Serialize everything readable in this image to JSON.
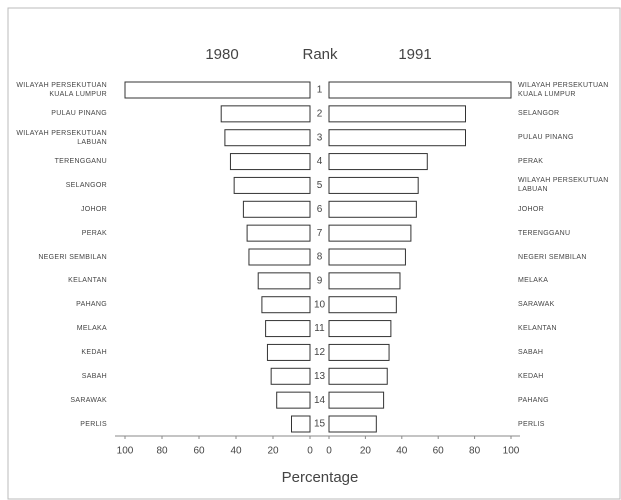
{
  "chart_data": {
    "type": "butterfly-bar",
    "headers": {
      "left": "1980",
      "middle": "Rank",
      "right": "1991"
    },
    "ranks": [
      1,
      2,
      3,
      4,
      5,
      6,
      7,
      8,
      9,
      10,
      11,
      12,
      13,
      14,
      15
    ],
    "series": [
      {
        "name": "1980",
        "color": "#ffffff",
        "categories": [
          "WILAYAH PERSEKUTUAN KUALA LUMPUR",
          "PULAU PINANG",
          "WILAYAH PERSEKUTUAN LABUAN",
          "TERENGGANU",
          "SELANGOR",
          "JOHOR",
          "PERAK",
          "NEGERI SEMBILAN",
          "KELANTAN",
          "PAHANG",
          "MELAKA",
          "KEDAH",
          "SABAH",
          "SARAWAK",
          "PERLIS"
        ],
        "values": [
          100,
          48,
          46,
          43,
          41,
          36,
          34,
          33,
          28,
          26,
          24,
          23,
          21,
          18,
          10
        ]
      },
      {
        "name": "1991",
        "color": "#ffffff",
        "categories": [
          "WILAYAH PERSEKUTUAN KUALA LUMPUR",
          "SELANGOR",
          "PULAU PINANG",
          "PERAK",
          "WILAYAH PERSEKUTUAN LABUAN",
          "JOHOR",
          "TERENGGANU",
          "NEGERI SEMBILAN",
          "MELAKA",
          "SARAWAK",
          "KELANTAN",
          "SABAH",
          "KEDAH",
          "PAHANG",
          "PERLIS"
        ],
        "values": [
          100,
          75,
          75,
          54,
          49,
          48,
          45,
          42,
          39,
          37,
          34,
          33,
          32,
          30,
          26
        ]
      }
    ],
    "xlabel": "Percentage",
    "xlim": [
      0,
      100
    ],
    "xticks": [
      0,
      20,
      40,
      60,
      80,
      100
    ]
  }
}
